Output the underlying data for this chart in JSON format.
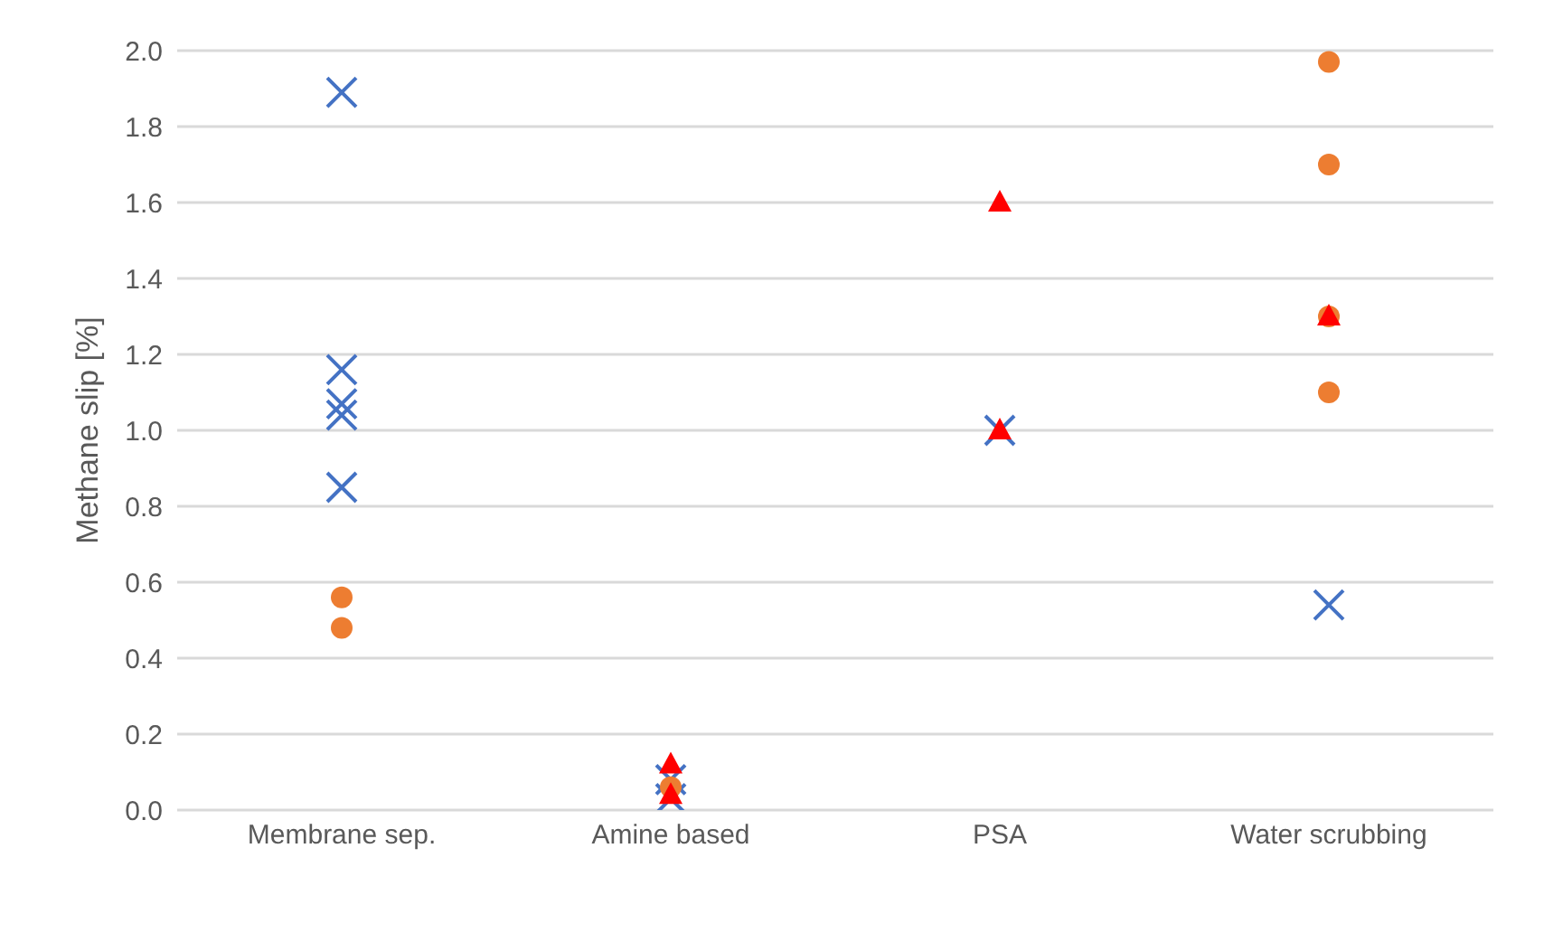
{
  "chart_data": {
    "type": "scatter",
    "ylabel": "Methane slip [%]",
    "categories": [
      "Membrane sep.",
      "Amine based",
      "PSA",
      "Water scrubbing"
    ],
    "ylim": [
      0,
      2
    ],
    "yticks": [
      {
        "value": 0,
        "label": "0.0"
      },
      {
        "value": 0.2,
        "label": "0.2"
      },
      {
        "value": 0.4,
        "label": "0.4"
      },
      {
        "value": 0.6,
        "label": "0.6"
      },
      {
        "value": 0.8,
        "label": "0.8"
      },
      {
        "value": 1,
        "label": "1.0"
      },
      {
        "value": 1.2,
        "label": "1.2"
      },
      {
        "value": 1.4,
        "label": "1.4"
      },
      {
        "value": 1.6,
        "label": "1.6"
      },
      {
        "value": 1.8,
        "label": "1.8"
      },
      {
        "value": 2,
        "label": "2.0"
      }
    ],
    "grid": "y",
    "legend": false,
    "series": [
      {
        "color": "#4472c4",
        "marker": "cross",
        "x": [
          "Membrane sep.",
          "Membrane sep.",
          "Membrane sep.",
          "Membrane sep.",
          "Membrane sep.",
          "Amine based",
          "Amine based",
          "PSA",
          "Water scrubbing"
        ],
        "values": [
          1.89,
          1.16,
          1.07,
          1.04,
          0.85,
          0.08,
          0.03,
          1.0,
          0.54
        ]
      },
      {
        "color": "#ed7d31",
        "marker": "circle",
        "x": [
          "Membrane sep.",
          "Membrane sep.",
          "Amine based",
          "Water scrubbing",
          "Water scrubbing",
          "Water scrubbing",
          "Water scrubbing"
        ],
        "values": [
          0.56,
          0.48,
          0.06,
          1.97,
          1.7,
          1.3,
          1.1
        ]
      },
      {
        "color": "#ff0000",
        "marker": "triangle",
        "x": [
          "Amine based",
          "Amine based",
          "PSA",
          "PSA",
          "Water scrubbing"
        ],
        "values": [
          0.12,
          0.04,
          1.6,
          1.0,
          1.3
        ]
      }
    ]
  }
}
